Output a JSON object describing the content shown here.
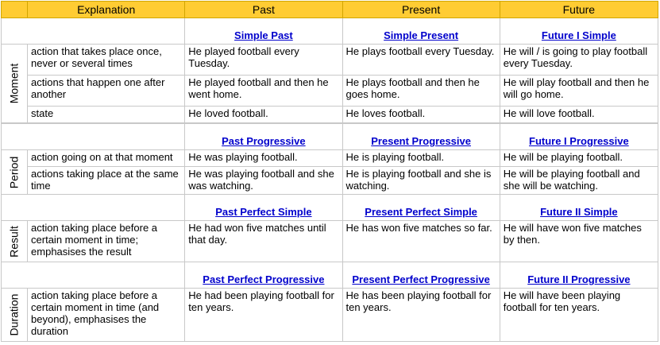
{
  "header": {
    "explanation": "Explanation",
    "past": "Past",
    "present": "Present",
    "future": "Future"
  },
  "groups": {
    "moment": {
      "label": "Moment",
      "tenses": [
        "Simple Past",
        "Simple Present",
        "Future I Simple"
      ],
      "rows": [
        {
          "explanation": "action that takes place once, never or several times",
          "past": "He played football every Tuesday.",
          "present": "He plays football every Tuesday.",
          "future": "He will / is going to play football every Tuesday."
        },
        {
          "explanation": "actions that happen one after another",
          "past": "He played football and then he went home.",
          "present": "He plays football and then he goes home.",
          "future": "He will play football and then he will go home."
        },
        {
          "explanation": "state",
          "past": "He loved football.",
          "present": "He loves football.",
          "future": "He will love football."
        }
      ]
    },
    "period": {
      "label": "Period",
      "tenses": [
        "Past Progressive",
        "Present Progressive",
        "Future I Progressive"
      ],
      "rows": [
        {
          "explanation": "action going on at that moment",
          "past": "He was playing football.",
          "present": "He is playing football.",
          "future": "He will be playing football."
        },
        {
          "explanation": "actions taking place at the same time",
          "past": "He was playing football and she was watching.",
          "present": "He is playing football and she is watching.",
          "future": "He will be playing football and she will be watching."
        }
      ]
    },
    "result": {
      "label": "Result",
      "tenses": [
        "Past Perfect Simple",
        "Present Perfect Simple",
        "Future II Simple"
      ],
      "rows": [
        {
          "explanation": "action taking place before a certain moment in time; emphasises the result",
          "past": "He had won five matches until that day.",
          "present": "He has won five matches so far.",
          "future": "He will have won five matches by then."
        }
      ]
    },
    "duration": {
      "label": "Duration",
      "tenses": [
        "Past Perfect Progressive",
        "Present Perfect Progressive",
        "Future II Progressive"
      ],
      "rows": [
        {
          "explanation": "action taking place before a certain moment in time (and beyond), emphasises the duration",
          "past": "He had been playing football for ten years.",
          "present": "He has been playing football for ten years.",
          "future": "He will have been playing football for ten years."
        }
      ]
    }
  },
  "colors": {
    "header_bg": "#ffcc33",
    "link": "#0000cc",
    "border": "#c8c8c8"
  }
}
